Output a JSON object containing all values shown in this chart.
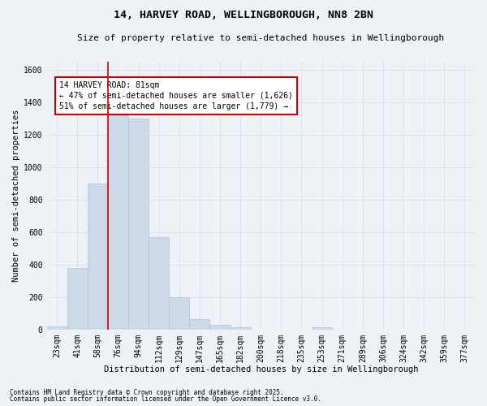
{
  "title": "14, HARVEY ROAD, WELLINGBOROUGH, NN8 2BN",
  "subtitle": "Size of property relative to semi-detached houses in Wellingborough",
  "xlabel": "Distribution of semi-detached houses by size in Wellingborough",
  "ylabel": "Number of semi-detached properties",
  "categories": [
    "23sqm",
    "41sqm",
    "58sqm",
    "76sqm",
    "94sqm",
    "112sqm",
    "129sqm",
    "147sqm",
    "165sqm",
    "182sqm",
    "200sqm",
    "218sqm",
    "235sqm",
    "253sqm",
    "271sqm",
    "289sqm",
    "306sqm",
    "324sqm",
    "342sqm",
    "359sqm",
    "377sqm"
  ],
  "values": [
    20,
    380,
    900,
    1320,
    1300,
    570,
    200,
    65,
    28,
    12,
    0,
    0,
    0,
    15,
    0,
    0,
    0,
    0,
    0,
    0,
    0
  ],
  "bar_color": "#ccd9e8",
  "bar_edgecolor": "#b0c4d8",
  "red_line_x": 2.5,
  "annotation_line1": "14 HARVEY ROAD: 81sqm",
  "annotation_line2": "← 47% of semi-detached houses are smaller (1,626)",
  "annotation_line3": "51% of semi-detached houses are larger (1,779) →",
  "box_facecolor": "#ffffff",
  "box_edgecolor": "#cc0000",
  "ylim": [
    0,
    1650
  ],
  "yticks": [
    0,
    200,
    400,
    600,
    800,
    1000,
    1200,
    1400,
    1600
  ],
  "footnote1": "Contains HM Land Registry data © Crown copyright and database right 2025.",
  "footnote2": "Contains public sector information licensed under the Open Government Licence v3.0.",
  "bg_color": "#eef2f7",
  "grid_color": "#d8e4f0",
  "title_fontsize": 9.5,
  "subtitle_fontsize": 8,
  "axis_label_fontsize": 7.5,
  "tick_fontsize": 7,
  "annot_fontsize": 7,
  "footnote_fontsize": 5.5
}
